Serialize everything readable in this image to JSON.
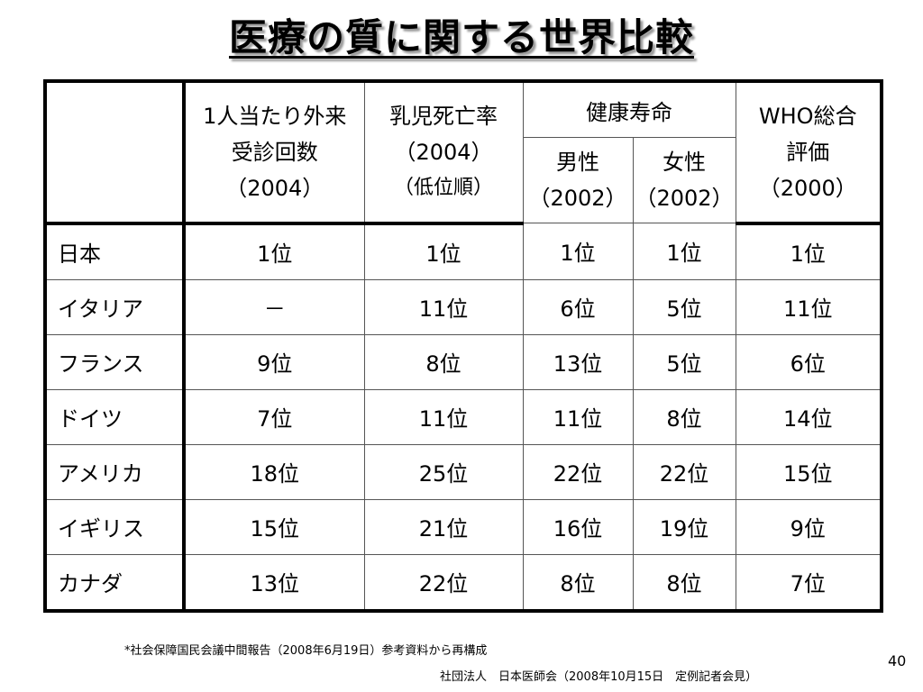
{
  "title": "医療の質に関する世界比較",
  "table": {
    "headers": {
      "outpatient": [
        "1人当たり外来",
        "受診回数",
        "（2004）"
      ],
      "infant_mortality": [
        "乳児死亡率",
        "（2004）",
        "（低位順）"
      ],
      "life_expectancy": "健康寿命",
      "life_male": [
        "男性",
        "（2002）"
      ],
      "life_female": [
        "女性",
        "（2002）"
      ],
      "who": [
        "WHO総合",
        "評価",
        "（2000）"
      ]
    },
    "rows": [
      {
        "country": "日本",
        "outpatient": "1位",
        "infant": "1位",
        "male": "1位",
        "female": "1位",
        "who": "1位"
      },
      {
        "country": "イタリア",
        "outpatient": "－",
        "infant": "11位",
        "male": "6位",
        "female": "5位",
        "who": "11位"
      },
      {
        "country": "フランス",
        "outpatient": "9位",
        "infant": "8位",
        "male": "13位",
        "female": "5位",
        "who": "6位"
      },
      {
        "country": "ドイツ",
        "outpatient": "7位",
        "infant": "11位",
        "male": "11位",
        "female": "8位",
        "who": "14位"
      },
      {
        "country": "アメリカ",
        "outpatient": "18位",
        "infant": "25位",
        "male": "22位",
        "female": "22位",
        "who": "15位"
      },
      {
        "country": "イギリス",
        "outpatient": "15位",
        "infant": "21位",
        "male": "16位",
        "female": "19位",
        "who": "9位"
      },
      {
        "country": "カナダ",
        "outpatient": "13位",
        "infant": "22位",
        "male": "8位",
        "female": "8位",
        "who": "7位"
      }
    ]
  },
  "footnote1": "*社会保障国民会議中間報告（2008年6月19日）参考資料から再構成",
  "footnote2": "社団法人　日本医師会（2008年10月15日　定例記者会見）",
  "page_number": "40"
}
